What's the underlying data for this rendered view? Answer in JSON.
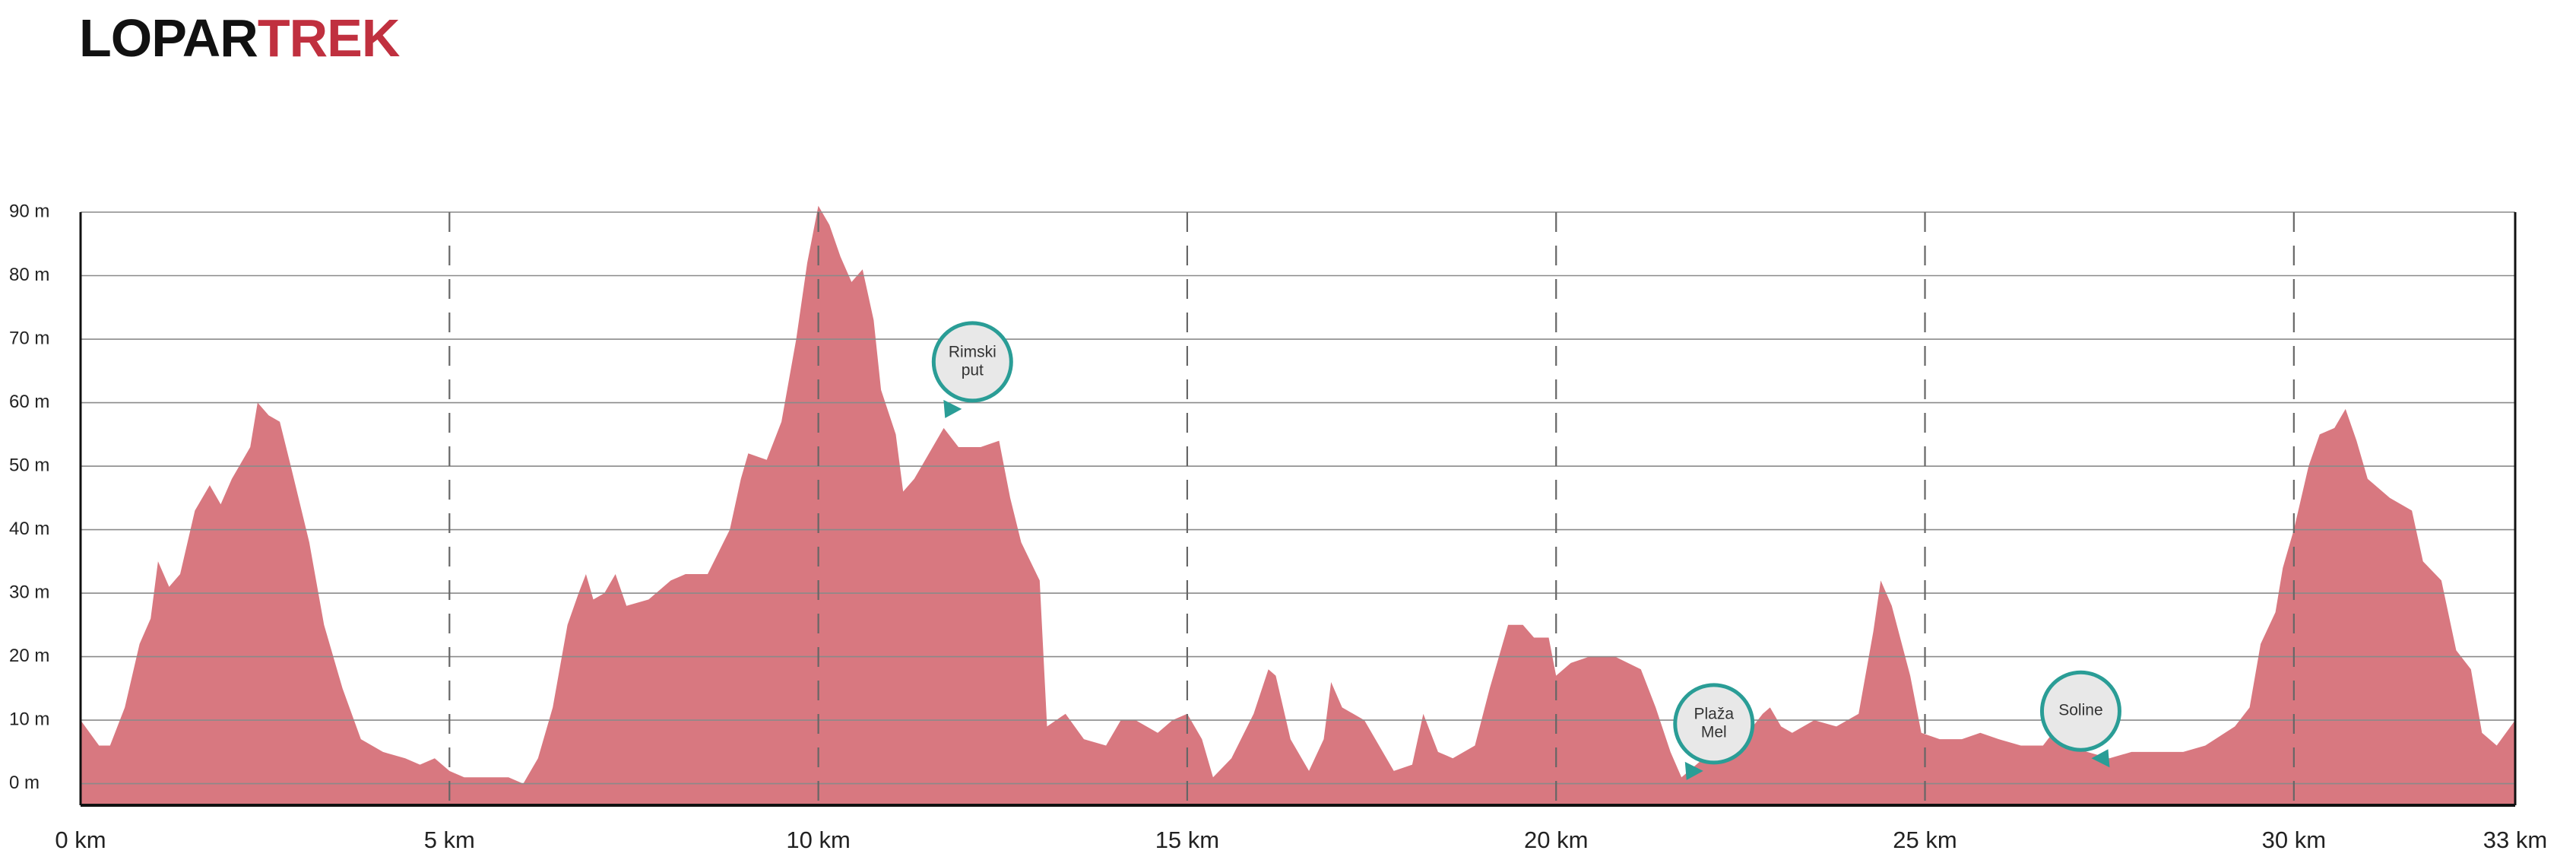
{
  "chart_data": {
    "type": "area",
    "title": {
      "parts": [
        {
          "text": "LOPAR",
          "color": "#111111"
        },
        {
          "text": "TREK",
          "color": "#c0303f"
        }
      ]
    },
    "color": "#d87880",
    "x": [
      0,
      0.25,
      0.4,
      0.6,
      0.8,
      0.95,
      1.05,
      1.2,
      1.35,
      1.55,
      1.75,
      1.9,
      2.05,
      2.3,
      2.4,
      2.55,
      2.7,
      2.85,
      3.1,
      3.3,
      3.55,
      3.8,
      4.1,
      4.4,
      4.6,
      4.8,
      5.0,
      5.2,
      5.5,
      5.8,
      6.0,
      6.2,
      6.4,
      6.6,
      6.75,
      6.85,
      6.95,
      7.1,
      7.25,
      7.4,
      7.7,
      8.0,
      8.2,
      8.5,
      8.8,
      8.95,
      9.05,
      9.3,
      9.5,
      9.7,
      9.85,
      10.0,
      10.15,
      10.3,
      10.45,
      10.6,
      10.75,
      10.85,
      11.05,
      11.15,
      11.3,
      11.45,
      11.7,
      11.9,
      12.2,
      12.45,
      12.6,
      12.75,
      13.0,
      13.1,
      13.35,
      13.6,
      13.9,
      14.1,
      14.3,
      14.6,
      14.8,
      15.0,
      15.2,
      15.35,
      15.6,
      15.9,
      16.1,
      16.2,
      16.4,
      16.65,
      16.85,
      16.95,
      17.1,
      17.4,
      17.6,
      17.8,
      18.05,
      18.2,
      18.4,
      18.6,
      18.9,
      19.1,
      19.35,
      19.55,
      19.7,
      19.9,
      20.0,
      20.2,
      20.45,
      20.8,
      21.15,
      21.35,
      21.55,
      21.7,
      21.9,
      22.2,
      22.6,
      22.8,
      22.9,
      23.05,
      23.2,
      23.5,
      23.8,
      24.1,
      24.3,
      24.4,
      24.55,
      24.8,
      24.95,
      25.2,
      25.5,
      25.75,
      26.0,
      26.3,
      26.6,
      26.8,
      27.0,
      27.2,
      27.5,
      27.8,
      28.1,
      28.5,
      28.8,
      29.2,
      29.4,
      29.55,
      29.75,
      29.85,
      30.0,
      30.2,
      30.35,
      30.55,
      30.7,
      30.85,
      31.0,
      31.3,
      31.6,
      31.75,
      32.0,
      32.2,
      32.4,
      32.55,
      32.75,
      33.0
    ],
    "values": [
      10,
      6,
      6,
      12,
      22,
      26,
      35,
      31,
      33,
      43,
      47,
      44,
      48,
      53,
      60,
      58,
      57,
      50,
      38,
      25,
      15,
      7,
      5,
      4,
      3,
      4,
      2,
      1,
      1,
      1,
      0,
      4,
      12,
      25,
      30,
      33,
      29,
      30,
      33,
      28,
      29,
      32,
      33,
      33,
      40,
      48,
      52,
      51,
      57,
      70,
      82,
      91,
      88,
      83,
      79,
      81,
      73,
      62,
      55,
      46,
      48,
      51,
      56,
      53,
      53,
      54,
      45,
      38,
      32,
      9,
      11,
      7,
      6,
      10,
      10,
      8,
      10,
      11,
      7,
      1,
      4,
      11,
      18,
      17,
      7,
      2,
      7,
      16,
      12,
      10,
      6,
      2,
      3,
      11,
      5,
      4,
      6,
      15,
      25,
      25,
      23,
      23,
      17,
      19,
      20,
      20,
      18,
      12,
      5,
      1,
      3,
      6,
      8,
      11,
      12,
      9,
      8,
      10,
      9,
      11,
      24,
      32,
      28,
      17,
      8,
      7,
      7,
      8,
      7,
      6,
      6,
      9,
      6,
      5,
      4,
      5,
      5,
      5,
      6,
      9,
      12,
      22,
      27,
      34,
      40,
      50,
      55,
      56,
      59,
      54,
      48,
      45,
      43,
      35,
      32,
      21,
      18,
      8,
      6,
      10
    ],
    "xlim": [
      0,
      33
    ],
    "ylim": [
      -3.4,
      90
    ],
    "xticks": [
      {
        "value": 0,
        "label": "0 km"
      },
      {
        "value": 5,
        "label": "5 km"
      },
      {
        "value": 10,
        "label": "10 km"
      },
      {
        "value": 15,
        "label": "15 km"
      },
      {
        "value": 20,
        "label": "20 km"
      },
      {
        "value": 25,
        "label": "25 km"
      },
      {
        "value": 30,
        "label": "30 km"
      },
      {
        "value": 33,
        "label": "33 km"
      }
    ],
    "yticks": [
      {
        "value": 0,
        "label": "0 m"
      },
      {
        "value": 10,
        "label": "10 m"
      },
      {
        "value": 20,
        "label": "20 m"
      },
      {
        "value": 30,
        "label": "30 m"
      },
      {
        "value": 40,
        "label": "40 m"
      },
      {
        "value": 50,
        "label": "50 m"
      },
      {
        "value": 60,
        "label": "60 m"
      },
      {
        "value": 70,
        "label": "70 m"
      },
      {
        "value": 80,
        "label": "80 m"
      },
      {
        "value": 90,
        "label": "90 m"
      }
    ],
    "grid": true,
    "annotations": [
      {
        "lines": [
          "Rimski",
          "put"
        ],
        "x": 11.8,
        "y": 59,
        "side": "right"
      },
      {
        "lines": [
          "Plaža",
          "Mel"
        ],
        "x": 21.85,
        "y": 2,
        "side": "right"
      },
      {
        "lines": [
          "Soline"
        ],
        "x": 27.4,
        "y": 4,
        "side": "left"
      }
    ],
    "marker_color": "#2a9d96"
  }
}
